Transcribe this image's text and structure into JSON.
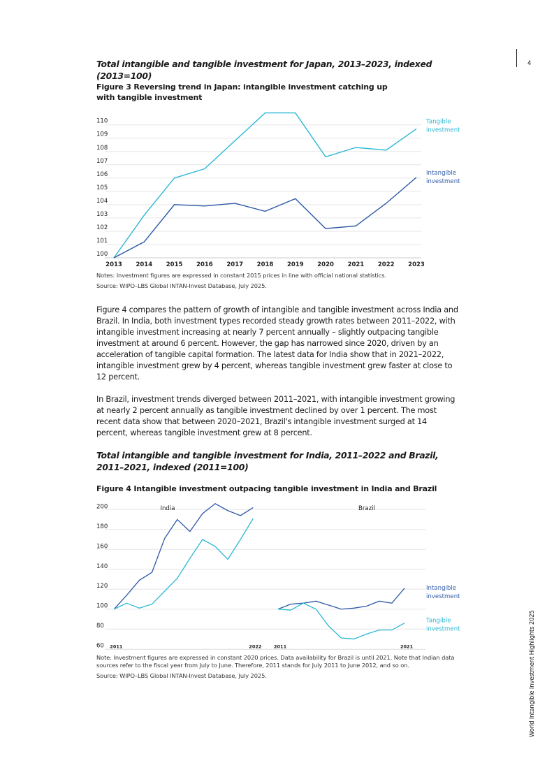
{
  "page_number": "4",
  "side_title": "World Intangible Investment Highlights 2025",
  "section1_heading": "Total intangible and tangible investment for Japan, 2013–2023, indexed (2013=100)",
  "figure3_title": "Figure 3 Reversing trend in Japan: intangible investment catching up with tangible investment",
  "figure3_notes": "Notes: Investment figures are expressed in constant 2015 prices in line with official national statistics.",
  "figure3_source": "Source: WIPO–LBS Global INTAN-Invest Database, July 2025.",
  "paragraph1": "Figure 4 compares the pattern of growth of intangible and tangible investment across India and Brazil. In India, both investment types recorded steady growth rates between 2011–2022, with intangible investment increasing at nearly 7 percent annually – slightly outpacing tangible investment at around 6 percent. However, the gap has narrowed since 2020, driven by an acceleration of tangible capital formation. The latest data for India show that in 2021–2022, intangible investment grew by 4 percent, whereas tangible investment grew faster at close to 12 percent.",
  "paragraph2": "In Brazil, investment trends diverged between 2011–2021, with intangible investment growing at nearly 2 percent annually as tangible investment declined by over 1 percent.  The most recent data show that between 2020–2021, Brazil's intangible investment surged at 14 percent, whereas tangible investment grew at 8 percent.",
  "section2_heading": "Total intangible and tangible investment for India, 2011–2022 and Brazil, 2011–2021, indexed (2011=100)",
  "figure4_title": "Figure 4 Intangible investment outpacing tangible investment in India and Brazil",
  "figure4_notes": "Note: Investment figures are expressed in constant 2020 prices. Data availability for Brazil is until 2021. Note that Indian data sources refer to the fiscal year from July to June. Therefore, 2011 stands for July 2011 to June 2012, and so on.",
  "figure4_source": "Source: WIPO–LBS Global INTAN-Invest Database, July 2025.",
  "chart_data": [
    {
      "type": "line",
      "x": [
        2013,
        2014,
        2015,
        2016,
        2017,
        2018,
        2019,
        2020,
        2021,
        2022,
        2023
      ],
      "ylim": [
        100,
        110
      ],
      "yticks": [
        100,
        101,
        102,
        103,
        104,
        105,
        106,
        107,
        108,
        109,
        110
      ],
      "grid": true,
      "legend": "right, inline labels",
      "series": [
        {
          "name": "Tangible investment",
          "color": "#2bb8d6",
          "values": [
            100,
            103.2,
            106.0,
            106.7,
            108.8,
            110.9,
            110.9,
            107.6,
            108.3,
            108.1,
            109.7
          ]
        },
        {
          "name": "Intangible investment",
          "color": "#2e5aa8",
          "values": [
            100,
            101.2,
            104.0,
            103.9,
            104.1,
            103.5,
            104.45,
            102.2,
            102.4,
            104.1,
            106.05
          ]
        }
      ]
    },
    {
      "type": "line",
      "panels": [
        {
          "title": "India",
          "x": [
            2011,
            2012,
            2013,
            2014,
            2015,
            2016,
            2017,
            2018,
            2019,
            2020,
            2021,
            2022
          ],
          "xticks": [
            "2011",
            "2022"
          ],
          "series": [
            {
              "name": "Intangible investment",
              "color": "#2e5aa8",
              "values": [
                100,
                114,
                129,
                137,
                171,
                190,
                178,
                196,
                206,
                199,
                194,
                202
              ]
            },
            {
              "name": "Tangible investment",
              "color": "#2bb8d6",
              "values": [
                100,
                106,
                101,
                105,
                118,
                131,
                151,
                170,
                163,
                150,
                170,
                191
              ]
            }
          ]
        },
        {
          "title": "Brazil",
          "x": [
            2011,
            2012,
            2013,
            2014,
            2015,
            2016,
            2017,
            2018,
            2019,
            2020,
            2021
          ],
          "xticks": [
            "2011",
            "2021"
          ],
          "series": [
            {
              "name": "Intangible investment",
              "color": "#2e5aa8",
              "values": [
                100,
                105,
                106,
                108,
                104,
                100,
                101,
                103,
                108,
                106,
                121
              ]
            },
            {
              "name": "Tangible investment",
              "color": "#2bb8d6",
              "values": [
                100,
                99,
                106,
                100,
                83,
                71,
                70,
                75,
                79,
                79,
                86
              ]
            }
          ]
        }
      ],
      "ylim": [
        60,
        200
      ],
      "yticks": [
        60,
        80,
        100,
        120,
        140,
        160,
        180,
        200
      ],
      "grid": true,
      "legend": "right, inline labels"
    }
  ]
}
